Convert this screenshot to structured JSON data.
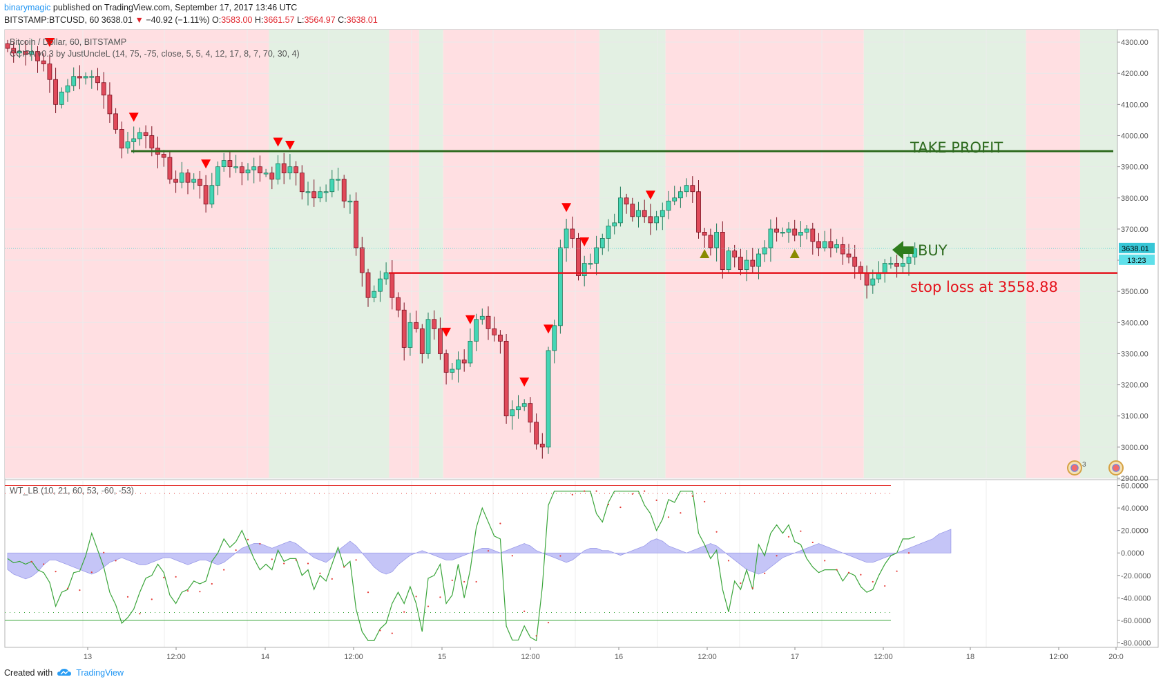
{
  "header": {
    "author": "binarymagic",
    "published": "published on TradingView.com, September 17, 2017 13:46 UTC",
    "symbol": "BITSTAMP:BTCUSD, 60",
    "last": "3638.01",
    "change_arrow": "▼",
    "change": "−40.92 (−1.11%)",
    "o_label": "O:",
    "o": "3583.00",
    "h_label": "H:",
    "h": "3661.57",
    "l_label": "L:",
    "l": "3564.97",
    "c_label": "C:",
    "c": "3638.01"
  },
  "legend": {
    "title": "Bitcoin / Dollar, 60, BITSTAMP",
    "indicator": "CCIPA v0.3 by JustUncleL (14, 75, -75, close, 5, 5, 4, 12, 17, 8, 7, 70, 30, 4)",
    "oscillator": "WT_LB (10, 21, 60, 53, -60, -53)"
  },
  "annotations": {
    "take_profit": "TAKE PROFIT",
    "buy": "BUY",
    "stop_loss": "stop loss at  3558.88"
  },
  "badges": {
    "price": "3638.01",
    "countdown": "13:23",
    "dividends_count": "3"
  },
  "footer": {
    "created_with": "Created with",
    "brand": "TradingView"
  },
  "colors": {
    "up": "#43d6b5",
    "up_dark": "#1f7a5a",
    "down": "#e04a5a",
    "down_dark": "#7a1020",
    "bg_red": "#ffdfe2",
    "bg_green": "#e3f0e3",
    "take_profit": "#2e6b1f",
    "stop_loss": "#e5121b",
    "buy_arrow": "#2e7d1c",
    "sell_marker": "#ff0000",
    "buy_marker": "#8a8a00",
    "wt_fill": "#b7b7f5",
    "wt_line": "#3aa53a",
    "wt_dots": "#e53935"
  },
  "chart_data": {
    "type": "candlestick",
    "price_axis": {
      "ticks": [
        "4300.00",
        "4200.00",
        "4100.00",
        "4000.00",
        "3900.00",
        "3800.00",
        "3700.00",
        "3600.00",
        "3500.00",
        "3400.00",
        "3300.00",
        "3200.00",
        "3100.00",
        "3000.00",
        "2900.00"
      ],
      "ylim": [
        2900,
        4340
      ]
    },
    "osc_axis": {
      "ticks": [
        "60.0000",
        "40.0000",
        "20.0000",
        "0.0000",
        "-20.0000",
        "-40.0000",
        "-60.0000",
        "-80.0000"
      ],
      "ylim": [
        -84,
        64
      ]
    },
    "time_axis": [
      "13",
      "12:00",
      "14",
      "12:00",
      "15",
      "12:00",
      "16",
      "12:00",
      "17",
      "12:00",
      "18",
      "12:00",
      "20:0"
    ],
    "take_profit": 3950,
    "stop_loss": 3558.88,
    "last_price": 3638.01,
    "wt_levels": [
      60,
      53,
      -53,
      -60
    ],
    "regimes": [
      [
        "red",
        0,
        44
      ],
      [
        "green",
        44,
        64
      ],
      [
        "red",
        64,
        69
      ],
      [
        "green",
        69,
        73
      ],
      [
        "red",
        73,
        99
      ],
      [
        "green",
        99,
        110
      ],
      [
        "red",
        110,
        143
      ],
      [
        "green",
        143,
        170
      ],
      [
        "red",
        170,
        179
      ],
      [
        "green",
        179,
        197
      ],
      [
        "red",
        197,
        200
      ]
    ],
    "closes": [
      4280,
      4265,
      4270,
      4260,
      4270,
      4240,
      4230,
      4180,
      4100,
      4140,
      4160,
      4190,
      4185,
      4190,
      4190,
      4170,
      4130,
      4070,
      4020,
      3960,
      3980,
      3990,
      4010,
      4000,
      3960,
      3940,
      3930,
      3860,
      3850,
      3880,
      3850,
      3860,
      3840,
      3780,
      3840,
      3900,
      3920,
      3900,
      3900,
      3880,
      3890,
      3900,
      3880,
      3880,
      3860,
      3910,
      3880,
      3900,
      3880,
      3820,
      3820,
      3800,
      3820,
      3820,
      3860,
      3860,
      3790,
      3790,
      3640,
      3560,
      3480,
      3500,
      3540,
      3560,
      3480,
      3440,
      3320,
      3400,
      3380,
      3300,
      3410,
      3380,
      3300,
      3240,
      3250,
      3280,
      3270,
      3340,
      3410,
      3420,
      3380,
      3360,
      3340,
      3100,
      3120,
      3130,
      3140,
      3080,
      3010,
      3000,
      3310,
      3390,
      3640,
      3700,
      3670,
      3550,
      3590,
      3590,
      3640,
      3670,
      3710,
      3720,
      3800,
      3780,
      3740,
      3760,
      3740,
      3720,
      3740,
      3760,
      3790,
      3800,
      3820,
      3840,
      3820,
      3690,
      3680,
      3640,
      3690,
      3570,
      3630,
      3610,
      3570,
      3600,
      3580,
      3620,
      3640,
      3700,
      3690,
      3690,
      3700,
      3680,
      3690,
      3700,
      3660,
      3640,
      3660,
      3640,
      3650,
      3620,
      3610,
      3580,
      3560,
      3520,
      3540,
      3560,
      3590,
      3590,
      3580,
      3590,
      3610,
      3638.01
    ],
    "sell_signals": [
      7,
      21,
      33,
      45,
      47,
      73,
      77,
      86,
      90,
      93,
      96,
      107,
      181
    ],
    "buy_signals": [
      116,
      131
    ],
    "wt_diff": [
      -7,
      -9,
      -10,
      -11,
      -10,
      -8,
      -5,
      -3,
      -3,
      -4,
      -5,
      -6,
      -7,
      -8,
      -9,
      -8,
      -6,
      -4,
      -3,
      -2,
      -3,
      -4,
      -5,
      -5,
      -4,
      -3,
      -2,
      -2,
      -3,
      -4,
      -5,
      -4,
      -3,
      -3,
      -4,
      -5,
      -4,
      -2,
      0,
      2,
      3,
      4,
      4,
      3,
      2,
      3,
      4,
      5,
      4,
      2,
      0,
      -2,
      -3,
      -4,
      -2,
      1,
      3,
      5,
      3,
      0,
      -3,
      -6,
      -8,
      -9,
      -8,
      -5,
      -3,
      -1,
      0,
      1,
      0,
      -1,
      -2,
      -3,
      -3,
      -2,
      -1,
      0,
      1,
      2,
      2,
      1,
      0,
      1,
      2,
      3,
      4,
      3,
      1,
      0,
      -1,
      -2,
      -3,
      -4,
      -3,
      -1,
      1,
      2,
      2,
      1,
      1,
      0,
      -1,
      0,
      1,
      2,
      3,
      5,
      6,
      5,
      3,
      2,
      1,
      0,
      1,
      2,
      3,
      4,
      3,
      1,
      -1,
      -3,
      -5,
      -7,
      -8,
      -9,
      -8,
      -6,
      -4,
      -2,
      -1,
      0,
      1,
      2,
      3,
      4,
      3,
      2,
      1,
      0,
      -1,
      -2,
      -3,
      -4,
      -4,
      -3,
      -2,
      -1,
      0,
      1,
      2,
      3,
      4,
      5,
      6,
      8,
      9,
      10
    ]
  }
}
